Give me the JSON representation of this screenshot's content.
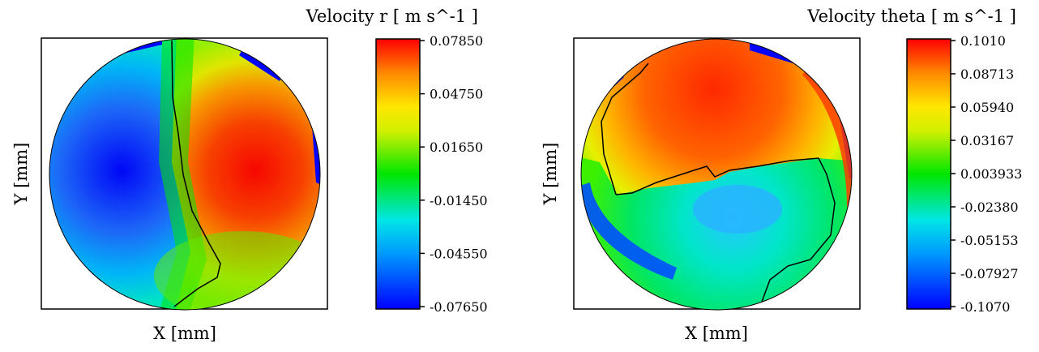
{
  "chart_data": [
    {
      "type": "heatmap",
      "title": "Velocity r [ m s^-1 ]",
      "xlabel": "X [mm]",
      "ylabel": "Y [mm]",
      "colorbar": {
        "min": -0.0765,
        "max": 0.0785,
        "ticks": [
          "0.07850",
          "0.04750",
          "0.01650",
          "-0.01450",
          "-0.04550",
          "-0.07650"
        ],
        "colormap": [
          "#0000ff",
          "#00c8ff",
          "#00e600",
          "#ffff00",
          "#ff0000"
        ]
      },
      "field": "radial velocity: negative (blue) on left half, positive (red) on right half, zero contour near vertical center line",
      "colors": {
        "low": "#0000ff",
        "mid": "#00e600",
        "high": "#ff0000"
      }
    },
    {
      "type": "heatmap",
      "title": "Velocity theta [ m s^-1 ]",
      "xlabel": "X [mm]",
      "ylabel": "Y [mm]",
      "colorbar": {
        "min": -0.107,
        "max": 0.101,
        "ticks": [
          "0.1010",
          "0.08713",
          "0.05940",
          "0.03167",
          "0.003933",
          "-0.02380",
          "-0.05153",
          "-0.07927",
          "-0.1070"
        ],
        "colormap": [
          "#0000ff",
          "#00c8ff",
          "#00e600",
          "#ffff00",
          "#ff0000"
        ]
      },
      "field": "tangential velocity: positive (red/orange) in upper half, slightly negative (cyan/green) lower half, blue near lower-left wall",
      "colors": {
        "low": "#0000ff",
        "mid": "#00e600",
        "high": "#ff0000"
      }
    }
  ]
}
